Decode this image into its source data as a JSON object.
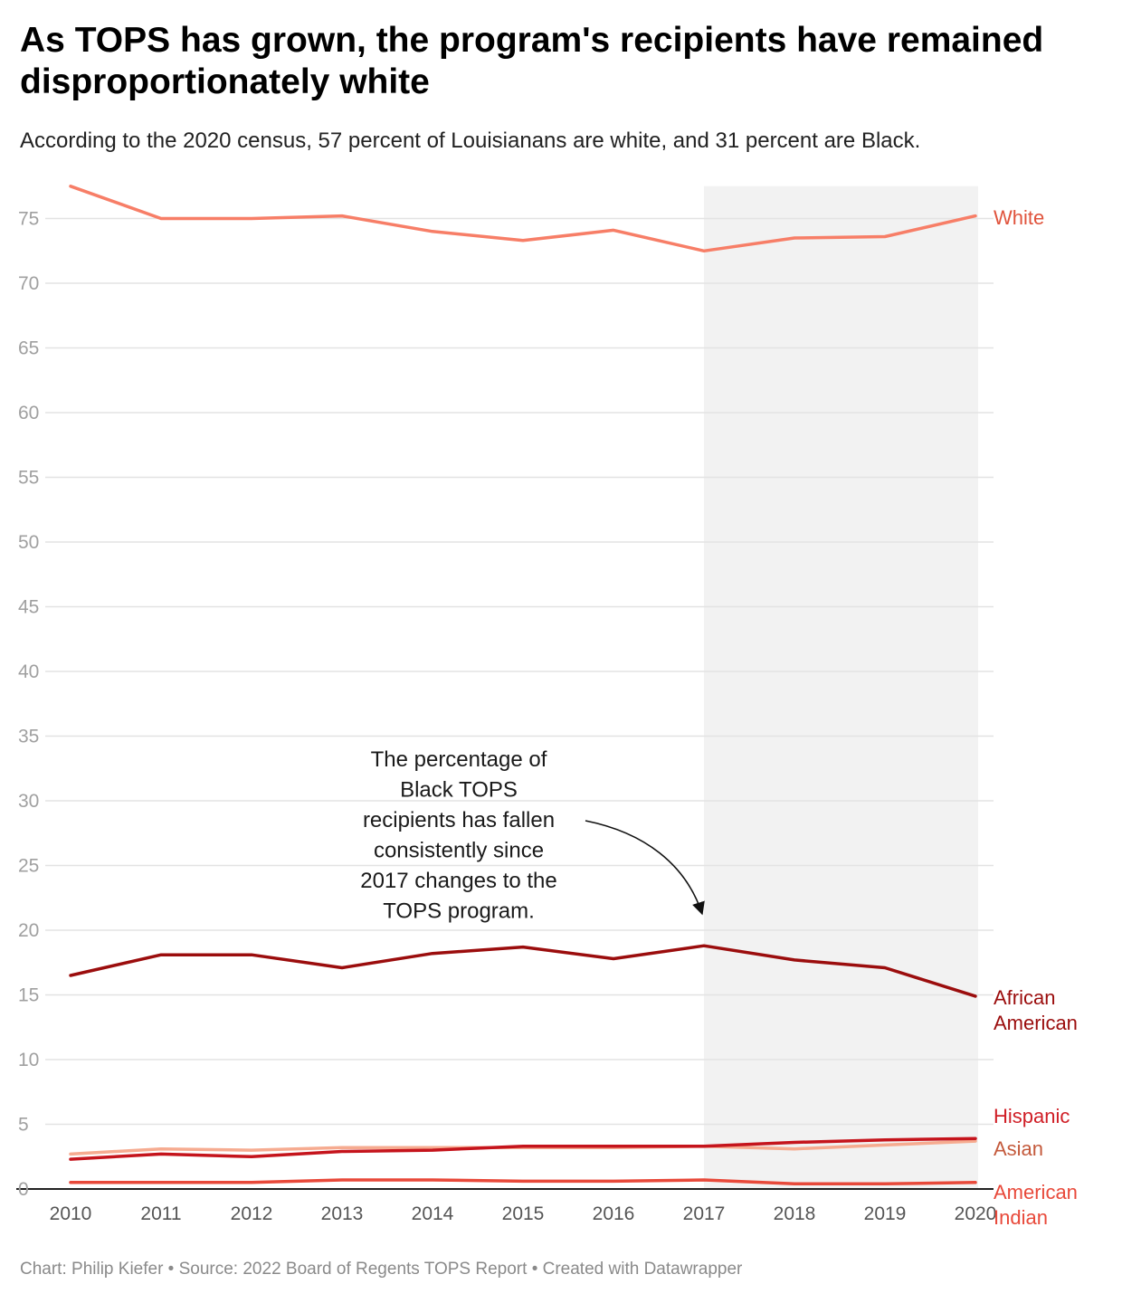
{
  "title": "As TOPS has grown, the program's recipients have remained disproportionately white",
  "subtitle": "According to the 2020 census, 57 percent of Louisianans are white, and 31 percent are Black.",
  "footer": "Chart: Philip Kiefer • Source: 2022 Board of Regents TOPS Report • Created with Datawrapper",
  "chart_data": {
    "type": "line",
    "x": [
      2010,
      2011,
      2012,
      2013,
      2014,
      2015,
      2016,
      2017,
      2018,
      2019,
      2020
    ],
    "ylim": [
      0,
      77.5
    ],
    "yticks": [
      0,
      5,
      10,
      15,
      20,
      25,
      30,
      35,
      40,
      45,
      50,
      55,
      60,
      65,
      70,
      75
    ],
    "grid": true,
    "highlight_range": [
      2017,
      2020
    ],
    "highlight_color": "#f2f2f2",
    "series": [
      {
        "name": "White",
        "label_lines": [
          "White"
        ],
        "color": "#f77e67",
        "label_color": "#e0533c",
        "values": [
          77.5,
          75.0,
          75.0,
          75.2,
          74.0,
          73.3,
          74.1,
          72.5,
          73.5,
          73.6,
          75.2
        ]
      },
      {
        "name": "African American",
        "label_lines": [
          "African",
          "American"
        ],
        "color": "#9b0d0d",
        "label_color": "#9b0d0d",
        "values": [
          16.5,
          18.1,
          18.1,
          17.1,
          18.2,
          18.7,
          17.8,
          18.8,
          17.7,
          17.1,
          14.9
        ]
      },
      {
        "name": "Asian",
        "label_lines": [
          "Asian"
        ],
        "color": "#f6ab90",
        "label_color": "#c45a3c",
        "values": [
          2.7,
          3.1,
          3.0,
          3.2,
          3.2,
          3.2,
          3.2,
          3.3,
          3.1,
          3.4,
          3.7
        ]
      },
      {
        "name": "Hispanic",
        "label_lines": [
          "Hispanic"
        ],
        "color": "#c5141c",
        "label_color": "#d01e26",
        "values": [
          2.3,
          2.7,
          2.5,
          2.9,
          3.0,
          3.3,
          3.3,
          3.3,
          3.6,
          3.8,
          3.9
        ]
      },
      {
        "name": "American Indian",
        "label_lines": [
          "American",
          "Indian"
        ],
        "color": "#e8493a",
        "label_color": "#e8493a",
        "values": [
          0.5,
          0.5,
          0.5,
          0.7,
          0.7,
          0.6,
          0.6,
          0.7,
          0.4,
          0.4,
          0.5
        ]
      }
    ],
    "annotation": {
      "lines": [
        "The percentage of",
        "Black TOPS",
        "recipients has fallen",
        "consistently since",
        "2017 changes to the",
        "TOPS program."
      ]
    }
  }
}
